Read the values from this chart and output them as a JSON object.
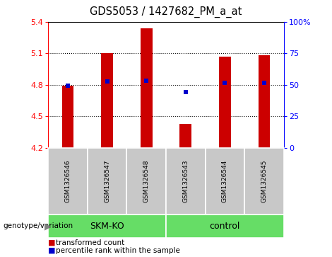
{
  "title": "GDS5053 / 1427682_PM_a_at",
  "samples": [
    "GSM1326546",
    "GSM1326547",
    "GSM1326548",
    "GSM1326543",
    "GSM1326544",
    "GSM1326545"
  ],
  "groups": [
    "SKM-KO",
    "SKM-KO",
    "SKM-KO",
    "control",
    "control",
    "control"
  ],
  "group_labels": [
    "SKM-KO",
    "control"
  ],
  "bar_values": [
    4.79,
    5.1,
    5.335,
    4.43,
    5.07,
    5.08
  ],
  "percentile_values": [
    4.79,
    4.83,
    4.84,
    4.73,
    4.82,
    4.82
  ],
  "ymin": 4.2,
  "ymax": 5.4,
  "yticks_left": [
    4.2,
    4.5,
    4.8,
    5.1,
    5.4
  ],
  "yticks_right": [
    0,
    25,
    50,
    75,
    100
  ],
  "bar_color": "#CC0000",
  "percentile_color": "#0000CC",
  "green_color": "#66DD66",
  "gray_color": "#C8C8C8",
  "legend_items": [
    "transformed count",
    "percentile rank within the sample"
  ]
}
